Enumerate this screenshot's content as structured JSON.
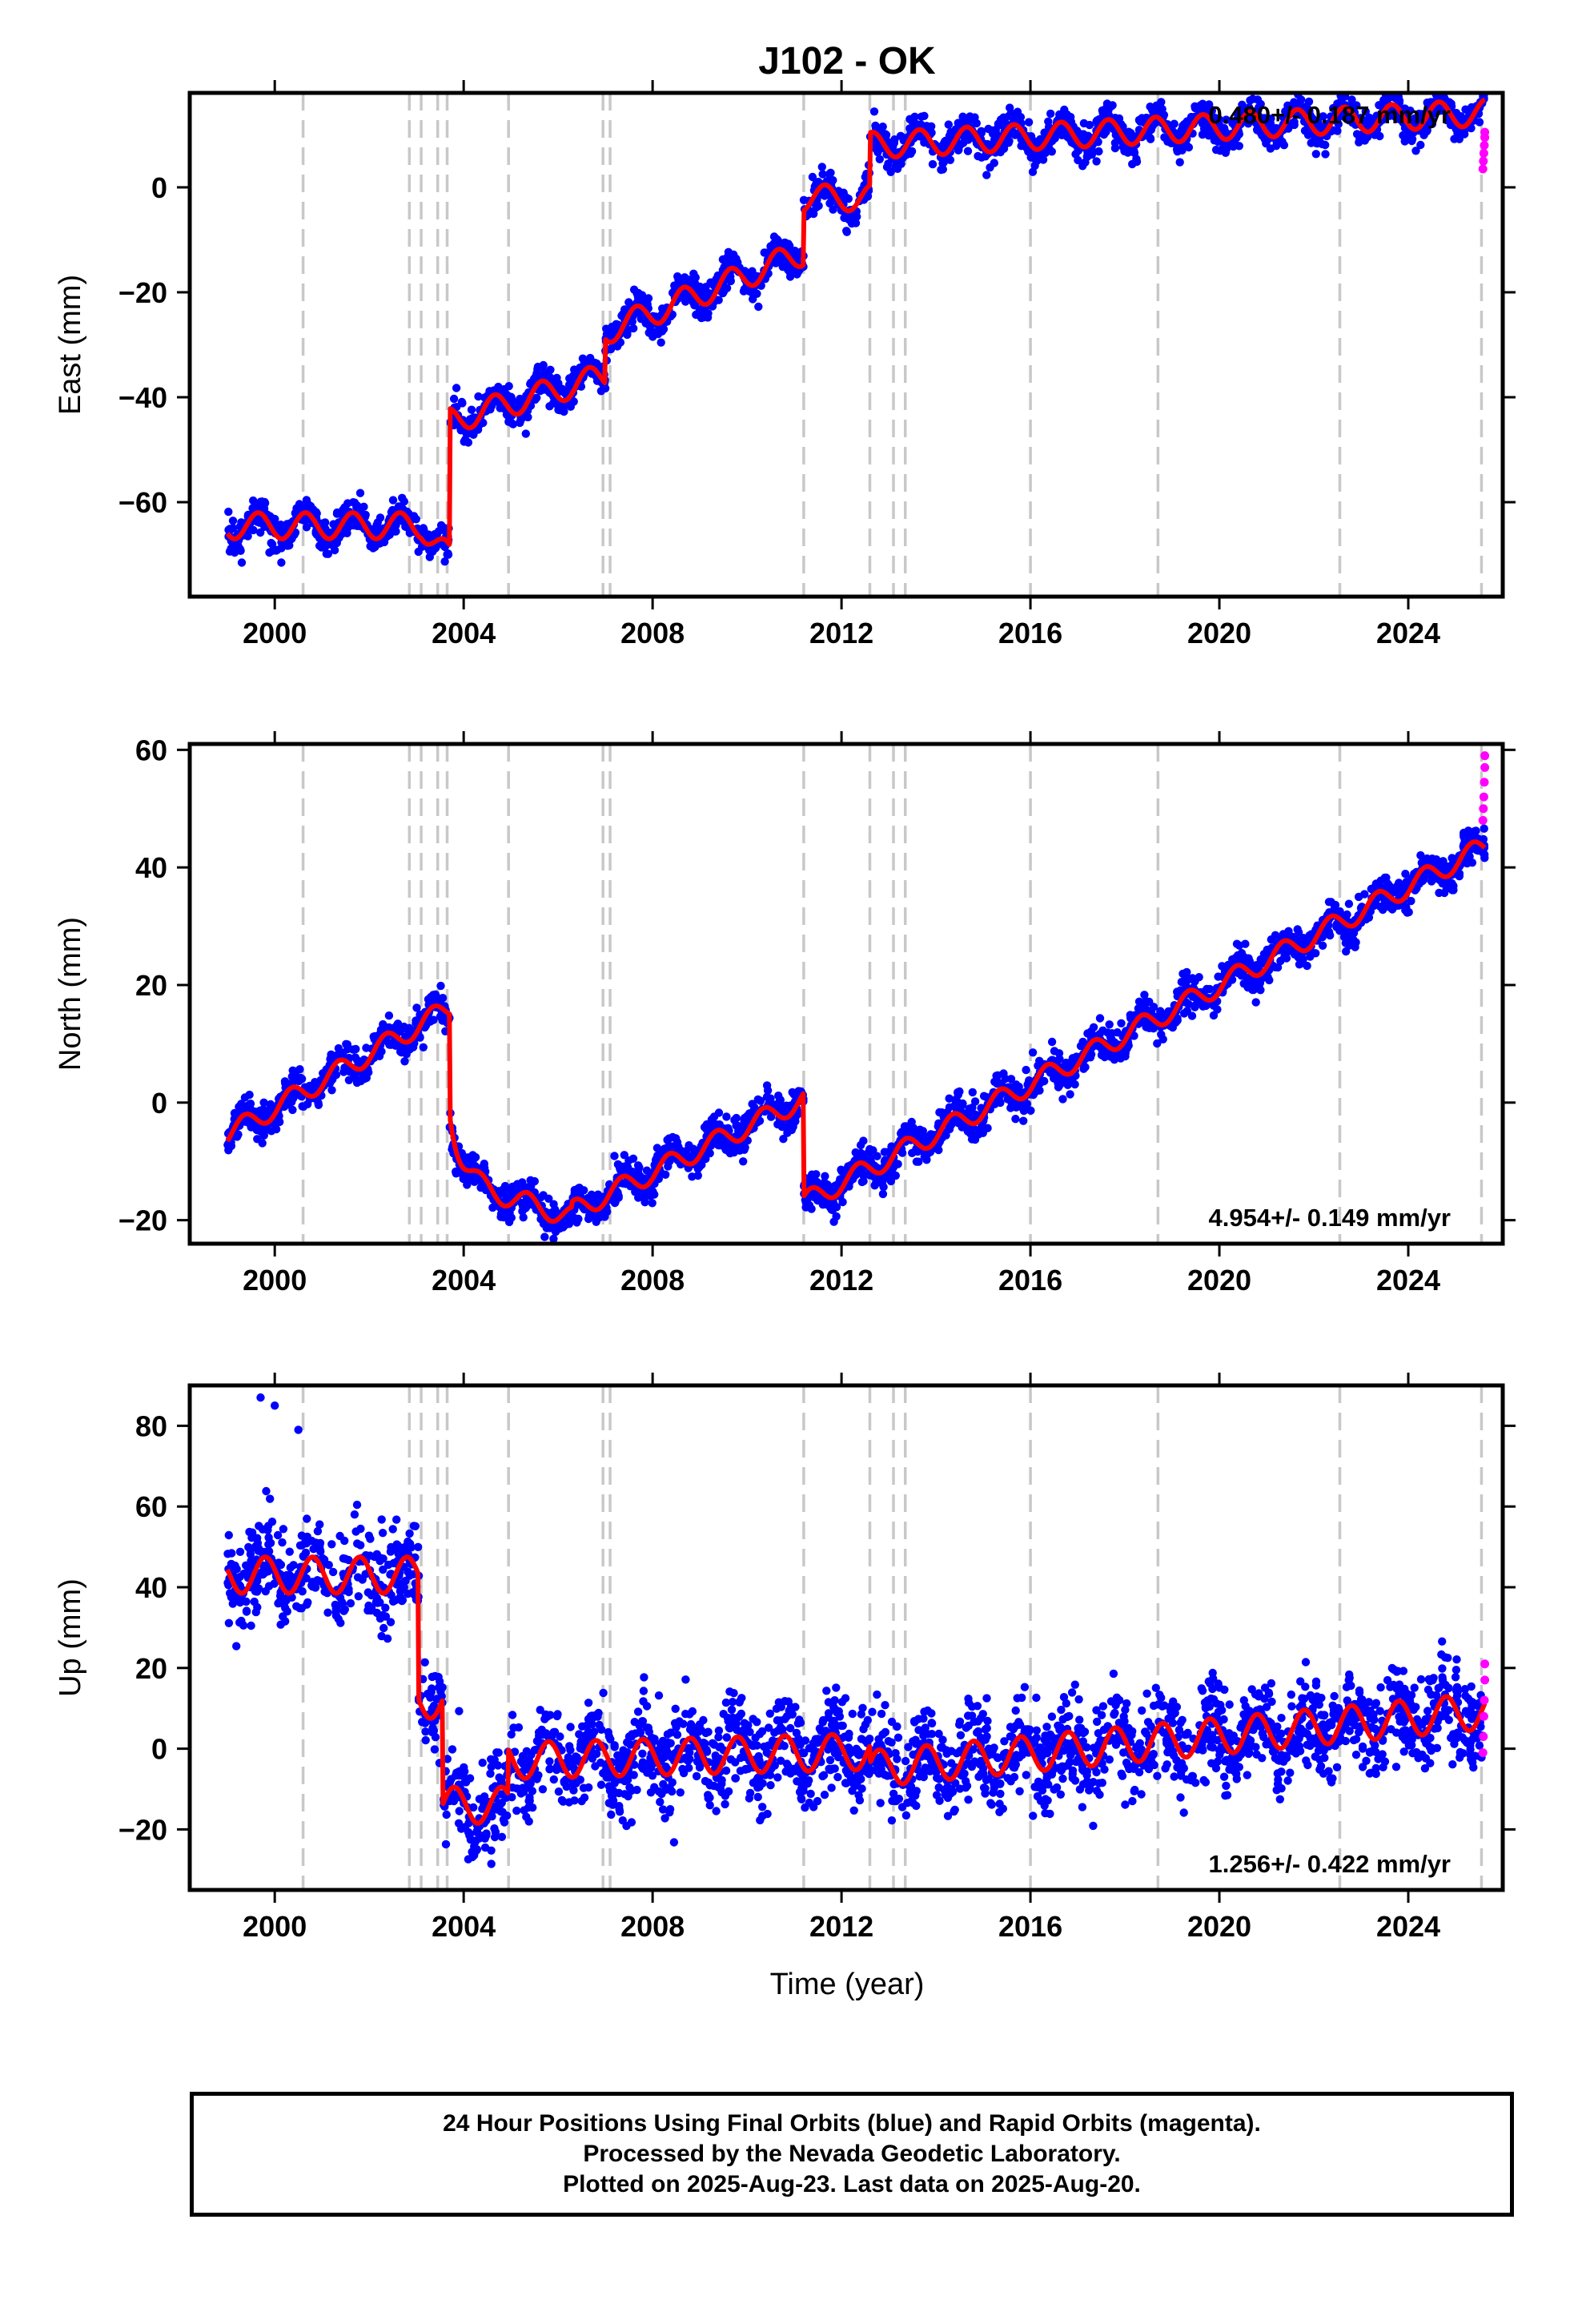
{
  "title": "J102 - OK",
  "xlabel": "Time (year)",
  "footer": {
    "line1": "24 Hour Positions Using Final Orbits (blue) and Rapid Orbits (magenta).",
    "line2": "Processed by the Nevada Geodetic Laboratory.",
    "line3": "Plotted on 2025-Aug-23. Last data on 2025-Aug-20."
  },
  "colors": {
    "final_orbits": "#0000ff",
    "rapid_orbits": "#ff00ff",
    "model_fit": "#ff0000",
    "event_lines": "#c8c8c8"
  },
  "chart_data": [
    {
      "type": "scatter",
      "component": "east",
      "ylabel": "East (mm)",
      "rate_label": "0.480+/- 0.187 mm/yr",
      "xlim": [
        1998.2,
        2026.0
      ],
      "ylim": [
        -78,
        18
      ],
      "xticks": [
        2000,
        2004,
        2008,
        2012,
        2016,
        2020,
        2024
      ],
      "yticks": [
        -60,
        -40,
        -20,
        0
      ],
      "event_lines": [
        2000.6,
        2002.85,
        2003.1,
        2003.45,
        2003.65,
        2004.95,
        2006.95,
        2007.1,
        2011.2,
        2012.6,
        2013.1,
        2013.35,
        2016.0,
        2018.7,
        2022.55,
        2025.55
      ],
      "model": {
        "segments": [
          {
            "t0": 1999.0,
            "t1": 2003.7,
            "a": -64.5,
            "b": 0.0
          },
          {
            "t0": 2003.7,
            "t1": 2007.0,
            "a": -44.5,
            "b": 2.6
          },
          {
            "t0": 2007.0,
            "t1": 2011.2,
            "a": -27.5,
            "b": 3.6
          },
          {
            "t0": 2011.2,
            "t1": 2012.6,
            "a": -2.0,
            "b": 0.0
          },
          {
            "t0": 2012.6,
            "t1": 2025.62,
            "a": 8.0,
            "b": 0.48
          }
        ],
        "amplitude": 2.5,
        "phase": 0.4,
        "early_bump": {
          "t0": 2003.1,
          "t1": 2003.7,
          "value": -6.0
        }
      },
      "scatter_sd": 1.6,
      "points_final": 2600,
      "rapid_points": [
        {
          "x": 2025.58,
          "y": 3.5
        },
        {
          "x": 2025.59,
          "y": 5.0
        },
        {
          "x": 2025.6,
          "y": 6.5
        },
        {
          "x": 2025.61,
          "y": 8.0
        },
        {
          "x": 2025.62,
          "y": 9.5
        },
        {
          "x": 2025.62,
          "y": 10.5
        }
      ]
    },
    {
      "type": "scatter",
      "component": "north",
      "ylabel": "North (mm)",
      "rate_label": "4.954+/- 0.149 mm/yr",
      "xlim": [
        1998.2,
        2026.0
      ],
      "ylim": [
        -24,
        61
      ],
      "xticks": [
        2000,
        2004,
        2008,
        2012,
        2016,
        2020,
        2024
      ],
      "yticks": [
        -20,
        0,
        20,
        40,
        60
      ],
      "event_lines": [
        2000.6,
        2002.85,
        2003.1,
        2003.45,
        2003.65,
        2004.95,
        2006.95,
        2007.1,
        2011.2,
        2012.6,
        2013.1,
        2013.35,
        2016.0,
        2018.7,
        2022.55,
        2025.55
      ],
      "model": {
        "segments": [
          {
            "t0": 1999.0,
            "t1": 2003.7,
            "a": -5.5,
            "b": 4.6
          },
          {
            "t0": 2003.7,
            "t1": 2006.3,
            "a": -13.0,
            "b": -2.5
          },
          {
            "t0": 2006.3,
            "t1": 2011.2,
            "a": -18.5,
            "b": 3.9
          },
          {
            "t0": 2011.2,
            "t1": 2025.62,
            "a": -17.0,
            "b": 4.2
          }
        ],
        "amplitude": 1.8,
        "phase": 0.1,
        "postseismic": {
          "t0": 2003.7,
          "amp": 12.0,
          "tau": 0.25
        }
      },
      "scatter_sd": 1.5,
      "points_final": 2600,
      "rapid_points": [
        {
          "x": 2025.58,
          "y": 48.0
        },
        {
          "x": 2025.59,
          "y": 50.0
        },
        {
          "x": 2025.6,
          "y": 52.0
        },
        {
          "x": 2025.61,
          "y": 54.5
        },
        {
          "x": 2025.62,
          "y": 57.0
        },
        {
          "x": 2025.62,
          "y": 59.0
        }
      ]
    },
    {
      "type": "scatter",
      "component": "up",
      "ylabel": "Up (mm)",
      "rate_label": "1.256+/- 0.422 mm/yr",
      "xlim": [
        1998.2,
        2026.0
      ],
      "ylim": [
        -35,
        90
      ],
      "xticks": [
        2000,
        2004,
        2008,
        2012,
        2016,
        2020,
        2024
      ],
      "yticks": [
        -20,
        0,
        20,
        40,
        60,
        80
      ],
      "event_lines": [
        2000.6,
        2002.85,
        2003.1,
        2003.45,
        2003.65,
        2004.95,
        2006.95,
        2007.1,
        2011.2,
        2012.6,
        2013.1,
        2013.35,
        2016.0,
        2018.7,
        2022.55,
        2025.55
      ],
      "model": {
        "segments": [
          {
            "t0": 1999.0,
            "t1": 2003.05,
            "a": 43.0,
            "b": 0.0
          },
          {
            "t0": 2003.05,
            "t1": 2003.55,
            "a": 12.0,
            "b": 0.0
          },
          {
            "t0": 2003.55,
            "t1": 2004.95,
            "a": -14.0,
            "b": 0.0
          },
          {
            "t0": 2004.95,
            "t1": 2012.6,
            "a": -3.0,
            "b": 0.3
          },
          {
            "t0": 2012.6,
            "t1": 2025.62,
            "a": -5.0,
            "b": 1.1
          }
        ],
        "amplitude": 4.5,
        "phase": 0.55
      },
      "scatter_sd": 5.5,
      "points_final": 2600,
      "outliers": [
        {
          "x": 1999.7,
          "y": 87.0
        },
        {
          "x": 2000.0,
          "y": 85.0
        },
        {
          "x": 2000.5,
          "y": 79.0
        }
      ],
      "rapid_points": [
        {
          "x": 2025.58,
          "y": -1.0
        },
        {
          "x": 2025.59,
          "y": 3.0
        },
        {
          "x": 2025.6,
          "y": 8.0
        },
        {
          "x": 2025.61,
          "y": 12.0
        },
        {
          "x": 2025.62,
          "y": 17.0
        },
        {
          "x": 2025.62,
          "y": 21.0
        }
      ]
    }
  ]
}
